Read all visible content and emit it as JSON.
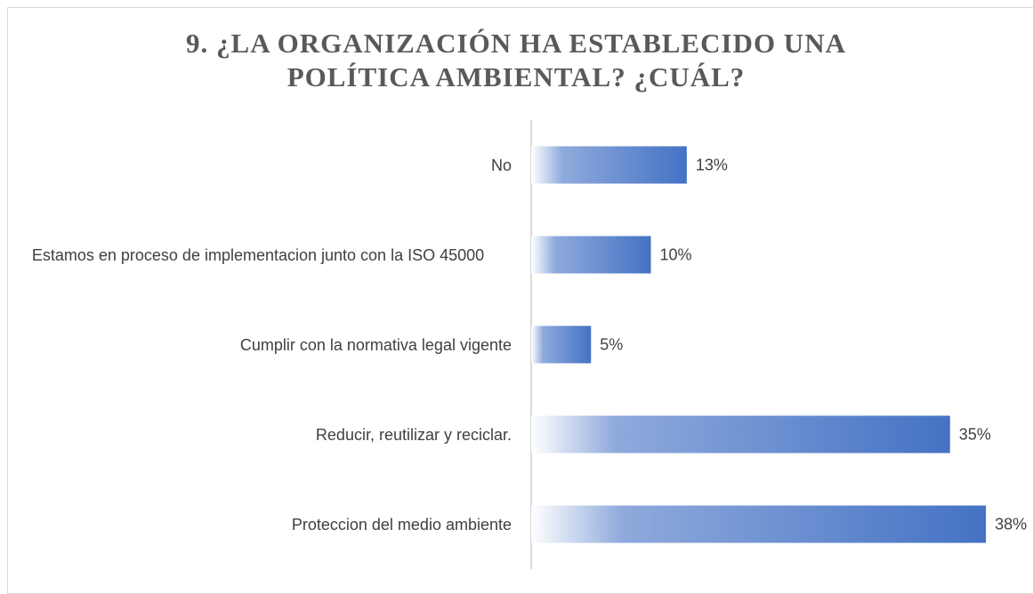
{
  "chart_data": {
    "type": "bar",
    "orientation": "horizontal",
    "title": "9. ¿LA ORGANIZACIÓN HA ESTABLECIDO UNA POLÍTICA AMBIENTAL? ¿CUÁL?",
    "categories": [
      "No",
      "Estamos en proceso de implementacion junto con la ISO 45000",
      "Cumplir con la normativa legal vigente",
      "Reducir, reutilizar y reciclar.",
      "Proteccion del medio ambiente"
    ],
    "values": [
      13,
      10,
      5,
      35,
      38
    ],
    "value_labels": [
      "13%",
      "10%",
      "5%",
      "35%",
      "38%"
    ],
    "color": "#4472c4"
  }
}
